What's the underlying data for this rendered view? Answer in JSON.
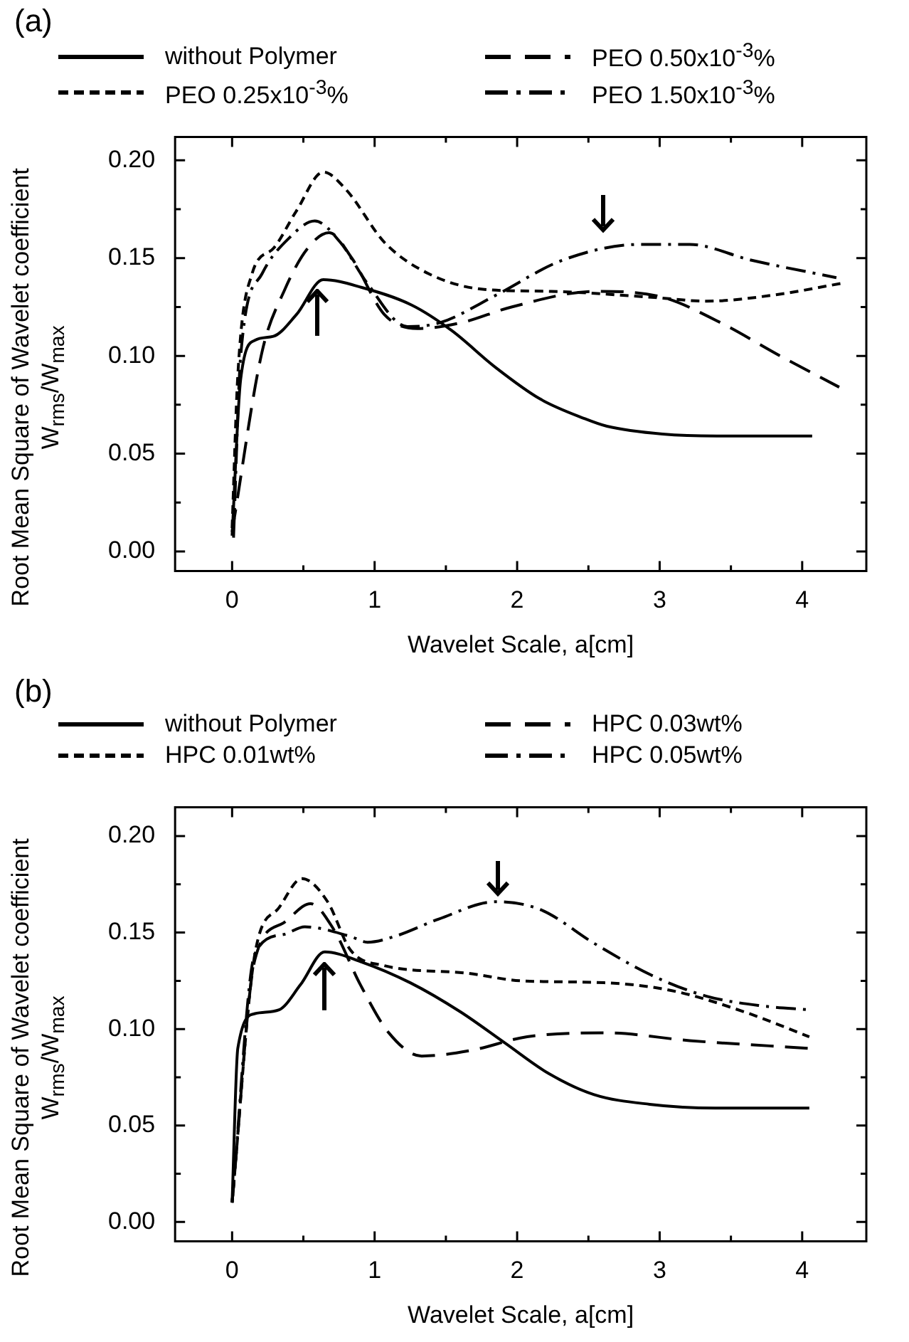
{
  "chart_data": [
    {
      "type": "line",
      "title": "(a)",
      "xlabel": "Wavelet Scale, a[cm]",
      "ylabel": "Root Mean Square of Wavelet coefficient W$_{rms}$/W$_{max}$",
      "xlim": [
        -0.4,
        4.45
      ],
      "xticks": [
        0,
        1,
        2,
        3,
        4
      ],
      "ylim": [
        -0.01,
        0.212
      ],
      "yticks": [
        {
          "value": 0,
          "label": "0.00"
        },
        {
          "value": 0.05,
          "label": "0.05"
        },
        {
          "value": 0.1,
          "label": "0.10"
        },
        {
          "value": 0.15,
          "label": "0.15"
        },
        {
          "value": 0.2,
          "label": "0.20"
        }
      ],
      "grid": false,
      "legend": "top",
      "marker": "none",
      "series": [
        {
          "name": "without Polymer",
          "color": "#000000",
          "line_style": "solid",
          "x": [
            0,
            0.06,
            0.16,
            0.29,
            0.45,
            0.64,
            0.91,
            1.26,
            1.54,
            1.85,
            2.16,
            2.47,
            2.63,
            3.02,
            3.4,
            4.07
          ],
          "values": [
            0.008,
            0.088,
            0.108,
            0.11,
            0.121,
            0.139,
            0.135,
            0.126,
            0.113,
            0.094,
            0.078,
            0.068,
            0.064,
            0.06,
            0.059,
            0.059
          ]
        },
        {
          "name": "PEO 0.25x10$^{-3}$%",
          "color": "#000000",
          "line_style": "dashed",
          "x": [
            0,
            0.04,
            0.14,
            0.29,
            0.45,
            0.64,
            0.8,
            1.07,
            1.38,
            1.77,
            2.24,
            2.94,
            3.33,
            3.79,
            4.27
          ],
          "values": [
            0.012,
            0.09,
            0.142,
            0.155,
            0.174,
            0.194,
            0.185,
            0.158,
            0.142,
            0.134,
            0.133,
            0.13,
            0.128,
            0.131,
            0.137
          ]
        },
        {
          "name": "PEO 0.50x10$^{-3}$%",
          "color": "#000000",
          "line_style": "longdash",
          "x": [
            0,
            0.21,
            0.37,
            0.53,
            0.68,
            0.84,
            1.07,
            1.3,
            1.61,
            1.96,
            2.55,
            3.02,
            3.4,
            3.87,
            4.26
          ],
          "values": [
            0.01,
            0.102,
            0.134,
            0.155,
            0.163,
            0.15,
            0.121,
            0.114,
            0.117,
            0.125,
            0.133,
            0.13,
            0.118,
            0.099,
            0.084
          ]
        },
        {
          "name": "PEO 1.50x10$^{-3}$%",
          "color": "#000000",
          "line_style": "dashdot",
          "x": [
            0.01,
            0.06,
            0.21,
            0.41,
            0.58,
            0.76,
            0.95,
            1.23,
            1.46,
            1.85,
            2.32,
            2.86,
            3.21,
            3.64,
            4.24
          ],
          "values": [
            0.007,
            0.1,
            0.142,
            0.161,
            0.169,
            0.158,
            0.137,
            0.115,
            0.117,
            0.131,
            0.149,
            0.157,
            0.157,
            0.149,
            0.14
          ]
        }
      ]
    },
    {
      "type": "line",
      "title": "(b)",
      "xlabel": "Wavelet Scale, a[cm]",
      "ylabel": "Root Mean Square of Wavelet coefficient W$_{rms}$/W$_{max}$",
      "xlim": [
        -0.4,
        4.45
      ],
      "xticks": [
        0,
        1,
        2,
        3,
        4
      ],
      "ylim": [
        -0.01,
        0.215
      ],
      "yticks": [
        {
          "value": 0,
          "label": "0.00"
        },
        {
          "value": 0.05,
          "label": "0.05"
        },
        {
          "value": 0.1,
          "label": "0.10"
        },
        {
          "value": 0.15,
          "label": "0.15"
        },
        {
          "value": 0.2,
          "label": "0.20"
        }
      ],
      "grid": false,
      "legend": "top",
      "marker": "none",
      "series": [
        {
          "name": "without Polymer",
          "color": "#000000",
          "line_style": "solid",
          "x": [
            0,
            0.04,
            0.16,
            0.33,
            0.48,
            0.65,
            0.9,
            1.25,
            1.6,
            1.91,
            2.22,
            2.54,
            2.93,
            3.39,
            4.05
          ],
          "values": [
            0.01,
            0.09,
            0.108,
            0.11,
            0.123,
            0.14,
            0.135,
            0.124,
            0.109,
            0.093,
            0.077,
            0.066,
            0.061,
            0.059,
            0.059
          ]
        },
        {
          "name": "HPC 0.01wt%",
          "color": "#000000",
          "line_style": "dashed",
          "x": [
            0,
            0.16,
            0.33,
            0.49,
            0.67,
            0.83,
            1.06,
            1.64,
            2.03,
            2.61,
            3.08,
            3.59,
            4.05
          ],
          "values": [
            0.01,
            0.139,
            0.163,
            0.178,
            0.166,
            0.141,
            0.133,
            0.129,
            0.125,
            0.124,
            0.12,
            0.109,
            0.096
          ]
        },
        {
          "name": "HPC 0.03wt%",
          "color": "#000000",
          "line_style": "longdash",
          "x": [
            0,
            0.16,
            0.36,
            0.55,
            0.71,
            0.9,
            1.1,
            1.33,
            1.68,
            2.07,
            2.63,
            3.21,
            4.05
          ],
          "values": [
            0.01,
            0.136,
            0.155,
            0.165,
            0.152,
            0.123,
            0.098,
            0.086,
            0.089,
            0.096,
            0.098,
            0.094,
            0.09
          ]
        },
        {
          "name": "HPC 0.05wt%",
          "color": "#000000",
          "line_style": "dashdot",
          "x": [
            0,
            0.16,
            0.36,
            0.51,
            0.83,
            0.95,
            1.14,
            1.45,
            1.85,
            2.16,
            2.55,
            2.94,
            3.33,
            3.72,
            4.05
          ],
          "values": [
            0.01,
            0.139,
            0.149,
            0.153,
            0.148,
            0.145,
            0.148,
            0.157,
            0.166,
            0.162,
            0.144,
            0.128,
            0.117,
            0.112,
            0.11
          ]
        }
      ]
    }
  ]
}
